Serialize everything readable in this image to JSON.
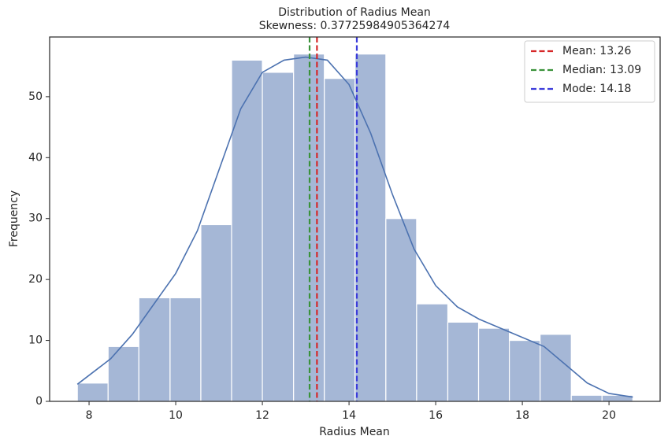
{
  "chart_data": {
    "type": "histogram",
    "title": "Distribution of Radius Mean",
    "subtitle": "Skewness: 0.37725984905364274",
    "x_label": "Radius Mean",
    "y_label": "Frequency",
    "bins": [
      7.73,
      8.44,
      9.15,
      9.87,
      10.58,
      11.29,
      12.0,
      12.72,
      13.43,
      14.14,
      14.85,
      15.56,
      16.28,
      16.99,
      17.7,
      18.41,
      19.13,
      19.84,
      20.55
    ],
    "counts": [
      3,
      9,
      17,
      17,
      29,
      56,
      54,
      57,
      53,
      57,
      30,
      16,
      13,
      12,
      10,
      11,
      1,
      1
    ],
    "color": "#a5b7d6",
    "kde": {
      "color": "#4c72b0",
      "x": [
        7.73,
        8.5,
        9,
        9.5,
        10,
        10.5,
        11,
        11.5,
        12,
        12.5,
        13,
        13.5,
        14,
        14.5,
        15,
        15.5,
        16,
        16.5,
        17,
        17.5,
        18,
        18.5,
        19,
        19.5,
        20,
        20.55
      ],
      "values": [
        2.8,
        7,
        11,
        16,
        21,
        28,
        38,
        48,
        54,
        56,
        56.5,
        56,
        52,
        44,
        34,
        25,
        19,
        15.5,
        13.5,
        12,
        10.5,
        9,
        6,
        3,
        1.3,
        0.7
      ]
    },
    "vlines": [
      {
        "name": "Mean: 13.26",
        "value": 13.26,
        "color": "#d62728"
      },
      {
        "name": "Median: 13.09",
        "value": 13.09,
        "color": "#3a923a"
      },
      {
        "name": "Mode: 14.18",
        "value": 14.18,
        "color": "#3b3bdb"
      }
    ],
    "xlim": [
      7.09,
      21.18
    ],
    "ylim": [
      0,
      59.8
    ],
    "xticks": [
      8,
      10,
      12,
      14,
      16,
      18,
      20
    ],
    "yticks": [
      0,
      10,
      20,
      30,
      40,
      50
    ],
    "legend": "upper right"
  }
}
